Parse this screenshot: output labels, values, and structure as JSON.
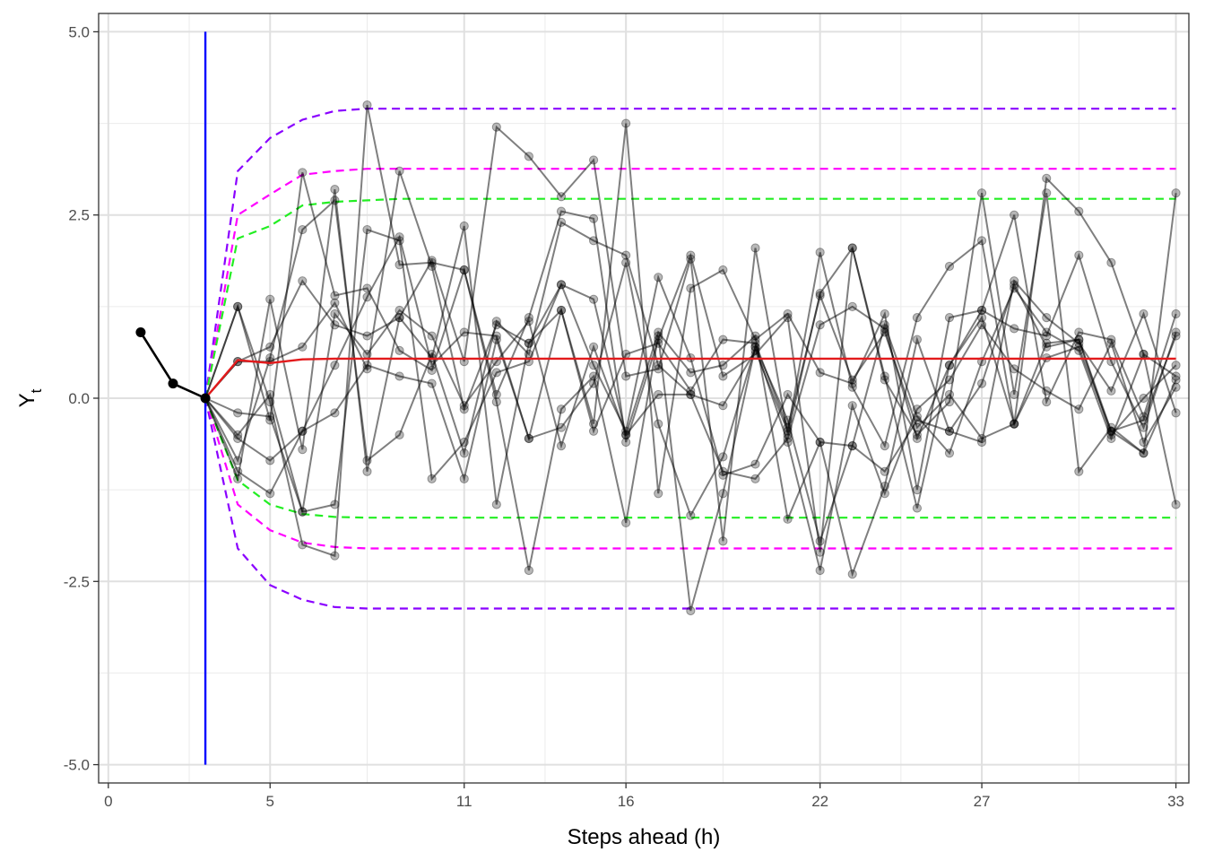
{
  "chart_data": {
    "type": "line",
    "title": "",
    "xlabel": "Steps ahead (h)",
    "ylabel": {
      "main": "Y",
      "subscript": "t"
    },
    "xlim": [
      -0.3,
      33.4
    ],
    "ylim": [
      -5.25,
      5.25
    ],
    "x_ticks": [
      0,
      5,
      11,
      16,
      22,
      27,
      33
    ],
    "y_ticks": [
      5.0,
      2.5,
      0.0,
      -2.5,
      -5.0
    ],
    "y_tick_labels": [
      "5.0",
      "2.5",
      "0.0",
      "-2.5",
      "-5.0"
    ],
    "grid": true,
    "legend": "none",
    "colors": {
      "observed": "#000000",
      "forecast_origin": "#0000ff",
      "mean_forecast": "#e31a1c",
      "band_inner": "#22ee22",
      "band_middle": "#ff00ff",
      "band_outer": "#8a00ff",
      "simulated_paths": "#000000"
    },
    "observed": {
      "x": [
        1,
        2,
        3
      ],
      "y": [
        0.9,
        0.2,
        0.0
      ]
    },
    "forecast_origin": {
      "x": 3,
      "y_range": [
        -5.0,
        5.0
      ]
    },
    "mean_forecast": {
      "x": [
        3,
        4,
        5,
        6,
        7,
        8,
        9,
        10,
        11,
        12,
        13,
        14,
        15,
        16,
        17,
        18,
        19,
        20,
        21,
        22,
        23,
        24,
        25,
        26,
        27,
        28,
        29,
        30,
        31,
        32,
        33
      ],
      "y": [
        0.0,
        0.52,
        0.48,
        0.53,
        0.54,
        0.54,
        0.54,
        0.54,
        0.54,
        0.54,
        0.54,
        0.54,
        0.54,
        0.54,
        0.54,
        0.54,
        0.54,
        0.54,
        0.54,
        0.54,
        0.54,
        0.54,
        0.54,
        0.54,
        0.54,
        0.54,
        0.54,
        0.54,
        0.54,
        0.54,
        0.54
      ]
    },
    "bands": [
      {
        "color_key": "band_outer",
        "x": [
          4,
          5,
          6,
          7,
          8,
          9,
          10,
          11,
          12,
          13,
          14,
          15,
          16,
          17,
          18,
          19,
          20,
          21,
          22,
          23,
          24,
          25,
          26,
          27,
          28,
          29,
          30,
          31,
          32,
          33
        ],
        "upper": [
          3.1,
          3.55,
          3.8,
          3.92,
          3.95,
          3.95,
          3.95,
          3.95,
          3.95,
          3.95,
          3.95,
          3.95,
          3.95,
          3.95,
          3.95,
          3.95,
          3.95,
          3.95,
          3.95,
          3.95,
          3.95,
          3.95,
          3.95,
          3.95,
          3.95,
          3.95,
          3.95,
          3.95,
          3.95,
          3.95
        ],
        "lower": [
          -2.05,
          -2.55,
          -2.75,
          -2.85,
          -2.87,
          -2.87,
          -2.87,
          -2.87,
          -2.87,
          -2.87,
          -2.87,
          -2.87,
          -2.87,
          -2.87,
          -2.87,
          -2.87,
          -2.87,
          -2.87,
          -2.87,
          -2.87,
          -2.87,
          -2.87,
          -2.87,
          -2.87,
          -2.87,
          -2.87,
          -2.87,
          -2.87,
          -2.87,
          -2.87
        ]
      },
      {
        "color_key": "band_middle",
        "x": [
          4,
          5,
          6,
          7,
          8,
          9,
          10,
          11,
          12,
          13,
          14,
          15,
          16,
          17,
          18,
          19,
          20,
          21,
          22,
          23,
          24,
          25,
          26,
          27,
          28,
          29,
          30,
          31,
          32,
          33
        ],
        "upper": [
          2.5,
          2.78,
          3.05,
          3.1,
          3.13,
          3.13,
          3.13,
          3.13,
          3.13,
          3.13,
          3.13,
          3.13,
          3.13,
          3.13,
          3.13,
          3.13,
          3.13,
          3.13,
          3.13,
          3.13,
          3.13,
          3.13,
          3.13,
          3.13,
          3.13,
          3.13,
          3.13,
          3.13,
          3.13,
          3.13
        ],
        "lower": [
          -1.45,
          -1.8,
          -1.97,
          -2.03,
          -2.05,
          -2.05,
          -2.05,
          -2.05,
          -2.05,
          -2.05,
          -2.05,
          -2.05,
          -2.05,
          -2.05,
          -2.05,
          -2.05,
          -2.05,
          -2.05,
          -2.05,
          -2.05,
          -2.05,
          -2.05,
          -2.05,
          -2.05,
          -2.05,
          -2.05,
          -2.05,
          -2.05,
          -2.05,
          -2.05
        ]
      },
      {
        "color_key": "band_inner",
        "x": [
          4,
          5,
          6,
          7,
          8,
          9,
          10,
          11,
          12,
          13,
          14,
          15,
          16,
          17,
          18,
          19,
          20,
          21,
          22,
          23,
          24,
          25,
          26,
          27,
          28,
          29,
          30,
          31,
          32,
          33
        ],
        "upper": [
          2.18,
          2.35,
          2.63,
          2.68,
          2.7,
          2.72,
          2.72,
          2.72,
          2.72,
          2.72,
          2.72,
          2.72,
          2.72,
          2.72,
          2.72,
          2.72,
          2.72,
          2.72,
          2.72,
          2.72,
          2.72,
          2.72,
          2.72,
          2.72,
          2.72,
          2.72,
          2.72,
          2.72,
          2.72,
          2.72
        ],
        "lower": [
          -1.12,
          -1.45,
          -1.58,
          -1.62,
          -1.63,
          -1.63,
          -1.63,
          -1.63,
          -1.63,
          -1.63,
          -1.63,
          -1.63,
          -1.63,
          -1.63,
          -1.63,
          -1.63,
          -1.63,
          -1.63,
          -1.63,
          -1.63,
          -1.63,
          -1.63,
          -1.63,
          -1.63,
          -1.63,
          -1.63,
          -1.63,
          -1.63,
          -1.63,
          -1.63
        ]
      }
    ],
    "paths_x": [
      3,
      4,
      5,
      6,
      7,
      8,
      9,
      10,
      11,
      12,
      13,
      14,
      15,
      16,
      17,
      18,
      19,
      20,
      21,
      22,
      23,
      24,
      25,
      26,
      27,
      28,
      29,
      30,
      31,
      32,
      33
    ],
    "simulated_paths": [
      [
        0.0,
        1.25,
        -0.3,
        3.08,
        1.4,
        1.5,
        0.65,
        0.38,
        1.75,
        0.05,
        1.1,
        2.55,
        2.45,
        -0.6,
        0.8,
        1.95,
        0.3,
        0.6,
        1.1,
        -2.1,
        2.05,
        0.3,
        -1.5,
        0.45,
        1.2,
        0.95,
        0.85,
        1.95,
        0.5,
        -0.4,
        0.9
      ],
      [
        0.0,
        -1.1,
        1.35,
        -0.7,
        2.85,
        -1.0,
        1.1,
        1.88,
        0.5,
        3.7,
        3.3,
        2.75,
        3.25,
        0.3,
        0.4,
        1.9,
        -1.95,
        2.05,
        -0.5,
        1.43,
        2.05,
        0.25,
        -0.5,
        -0.05,
        2.8,
        0.05,
        2.8,
        -1.0,
        -0.4,
        -0.75,
        2.8
      ]
    ],
    "paths_2": [
      [
        0.0,
        0.5,
        0.7,
        1.6,
        1.0,
        0.85,
        1.1,
        0.55,
        2.35,
        -1.45,
        0.75,
        1.2,
        -0.35,
        3.75,
        -1.3,
        1.5,
        1.75,
        0.8,
        1.15,
        0.35,
        0.2,
        1.15,
        -1.25,
        1.1,
        1.2,
        2.5,
        -0.05,
        0.9,
        0.8,
        -0.25,
        1.15
      ],
      [
        0.0,
        -0.85,
        0.55,
        2.3,
        2.7,
        -0.85,
        -0.5,
        0.6,
        -0.75,
        1.05,
        0.6,
        2.4,
        2.15,
        1.95,
        0.45,
        0.05,
        -0.1,
        0.65,
        -0.45,
        1.99,
        0.15,
        -0.65,
        1.1,
        1.8,
        2.15,
        -0.35,
        3.0,
        2.55,
        1.85,
        0.6,
        -1.45
      ],
      [
        0.0,
        -0.2,
        -0.25,
        -1.55,
        -1.45,
        2.3,
        2.15,
        -1.1,
        -0.6,
        0.35,
        0.5,
        1.55,
        0.45,
        -0.45,
        1.65,
        0.55,
        -1.05,
        -0.9,
        0.05,
        -0.6,
        -2.4,
        -1.2,
        0.8,
        -0.45,
        -0.6,
        1.6,
        1.1,
        0.75,
        0.1,
        1.15,
        -0.2
      ],
      [
        0.0,
        -0.55,
        -0.85,
        -0.45,
        0.45,
        1.38,
        2.2,
        0.45,
        0.9,
        0.85,
        -0.55,
        -0.4,
        0.2,
        1.85,
        -0.35,
        -1.6,
        -0.8,
        0.7,
        -0.6,
        -2.35,
        -0.1,
        -1.3,
        -0.15,
        0.25,
        1.0,
        0.4,
        0.1,
        -0.15,
        0.75,
        -0.6,
        0.15
      ],
      [
        0.0,
        -0.5,
        0.05,
        -1.55,
        1.15,
        0.6,
        1.2,
        0.85,
        -0.1,
        0.5,
        1.05,
        -0.65,
        0.7,
        -0.5,
        0.9,
        0.35,
        0.45,
        0.85,
        -1.65,
        -0.6,
        -0.65,
        1.0,
        -0.25,
        -0.75,
        0.5,
        1.5,
        0.9,
        0.65,
        -0.55,
        0.6,
        0.3
      ],
      [
        0.0,
        1.25,
        -0.05,
        -2.0,
        -2.15,
        4.0,
        1.82,
        1.85,
        1.75,
        -0.05,
        -2.35,
        -0.15,
        0.3,
        -1.7,
        0.85,
        -2.9,
        -1.3,
        0.7,
        -0.3,
        -1.95,
        -0.65,
        -1.0,
        -0.3,
        -0.45,
        0.2,
        1.55,
        0.7,
        0.8,
        -0.5,
        0.0,
        0.45
      ],
      [
        0.0,
        -1.0,
        -1.3,
        -0.45,
        -0.2,
        0.45,
        0.3,
        0.2,
        -1.1,
        0.8,
        -0.55,
        1.2,
        -0.45,
        0.6,
        0.75,
        0.1,
        0.8,
        0.75,
        -0.4,
        1.4,
        0.25,
        0.9,
        -0.4,
        0.05,
        -0.55,
        -0.35,
        0.55,
        0.7,
        -0.45,
        -0.3,
        0.85
      ],
      [
        0.0,
        0.5,
        0.5,
        0.7,
        1.3,
        0.4,
        3.1,
        1.8,
        -0.15,
        1.0,
        0.75,
        1.55,
        1.35,
        -0.5,
        0.05,
        0.05,
        -1.0,
        -1.1,
        -0.55,
        1.0,
        1.25,
        0.95,
        -0.55,
        0.45,
        1.1,
        -0.35,
        0.75,
        0.8,
        -0.45,
        -0.75,
        0.25
      ]
    ]
  }
}
